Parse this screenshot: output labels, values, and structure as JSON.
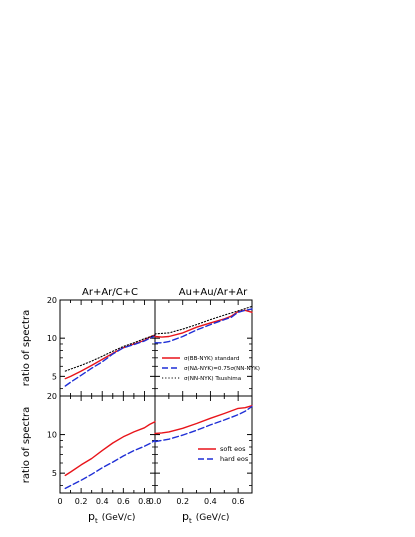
{
  "chart_data": {
    "type": "line",
    "ylabel": "ratio of spectra",
    "xlabel": "p",
    "xlabel_sub": "t",
    "xlabel_unit": "(GeV/c)",
    "colors": {
      "red": "#e8141a",
      "blue": "#1f2fd6",
      "black": "#000000",
      "axis": "#000000"
    },
    "columns": [
      {
        "title": "Ar+Ar/C+C",
        "xlim": [
          0,
          0.9
        ],
        "xticks": [
          "0",
          "0.2",
          "0.4",
          "0.6",
          "0.8"
        ]
      },
      {
        "title": "Au+Au/Ar+Ar",
        "xlim": [
          0,
          0.7
        ],
        "xticks": [
          "0.0",
          "0.2",
          "0.4",
          "0.6"
        ]
      }
    ],
    "rows": [
      {
        "ylim": [
          3.5,
          20
        ],
        "ytick_labels": {
          "5": "5",
          "10": "10",
          "20": "20"
        }
      },
      {
        "ylim": [
          3.5,
          20
        ],
        "ytick_labels": {
          "5": "5",
          "10": "10",
          "20": "20"
        }
      }
    ],
    "yscale": "log",
    "y_major_ticks": [
      5,
      10,
      20
    ],
    "y_minor_ticks": [
      4,
      6,
      7,
      8,
      9
    ],
    "panels": [
      {
        "row": 0,
        "col": 0,
        "series": [
          {
            "key": "std",
            "style": "solid",
            "color": "red",
            "x": [
              0.05,
              0.1,
              0.2,
              0.3,
              0.4,
              0.5,
              0.6,
              0.7,
              0.8,
              0.85,
              0.9
            ],
            "y": [
              4.8,
              5.0,
              5.5,
              6.1,
              6.8,
              7.6,
              8.4,
              9.0,
              9.6,
              10.2,
              10.6
            ]
          },
          {
            "key": "na",
            "style": "dashed",
            "color": "blue",
            "x": [
              0.05,
              0.1,
              0.2,
              0.3,
              0.4,
              0.5,
              0.6,
              0.7,
              0.8,
              0.85,
              0.9
            ],
            "y": [
              4.2,
              4.5,
              5.1,
              5.8,
              6.5,
              7.5,
              8.4,
              8.9,
              9.5,
              10.0,
              10.4
            ]
          },
          {
            "key": "nn",
            "style": "dotted",
            "color": "black",
            "x": [
              0.05,
              0.1,
              0.2,
              0.3,
              0.4,
              0.5,
              0.6,
              0.7,
              0.8,
              0.9
            ],
            "y": [
              5.5,
              5.7,
              6.1,
              6.6,
              7.2,
              7.9,
              8.6,
              9.2,
              9.9,
              10.6
            ]
          }
        ]
      },
      {
        "row": 0,
        "col": 1,
        "series": [
          {
            "key": "std",
            "style": "solid",
            "color": "red",
            "x": [
              0.0,
              0.05,
              0.1,
              0.2,
              0.3,
              0.4,
              0.5,
              0.55,
              0.6,
              0.65,
              0.7
            ],
            "y": [
              10.3,
              10.2,
              10.3,
              11.0,
              12.2,
              13.2,
              14.2,
              14.9,
              16.2,
              16.6,
              16.0
            ]
          },
          {
            "key": "na",
            "style": "dashed",
            "color": "blue",
            "x": [
              0.0,
              0.05,
              0.1,
              0.2,
              0.3,
              0.4,
              0.5,
              0.55,
              0.6,
              0.65,
              0.7
            ],
            "y": [
              9.2,
              9.2,
              9.4,
              10.3,
              11.6,
              12.8,
              14.0,
              14.6,
              16.0,
              16.6,
              17.0
            ]
          },
          {
            "key": "nn",
            "style": "dotted",
            "color": "black",
            "x": [
              0.0,
              0.05,
              0.1,
              0.2,
              0.3,
              0.4,
              0.5,
              0.6,
              0.7
            ],
            "y": [
              10.8,
              10.9,
              11.0,
              11.8,
              12.8,
              14.0,
              15.2,
              16.4,
              17.8
            ]
          }
        ]
      },
      {
        "row": 1,
        "col": 0,
        "series": [
          {
            "key": "soft",
            "style": "solid",
            "color": "red",
            "x": [
              0.05,
              0.1,
              0.2,
              0.3,
              0.4,
              0.5,
              0.6,
              0.7,
              0.8,
              0.85,
              0.9
            ],
            "y": [
              4.8,
              5.1,
              5.8,
              6.5,
              7.5,
              8.6,
              9.6,
              10.5,
              11.3,
              12.0,
              12.6
            ]
          },
          {
            "key": "hard",
            "style": "dashed",
            "color": "blue",
            "x": [
              0.05,
              0.1,
              0.2,
              0.3,
              0.4,
              0.5,
              0.6,
              0.7,
              0.8,
              0.85,
              0.9
            ],
            "y": [
              3.8,
              4.0,
              4.4,
              4.9,
              5.5,
              6.1,
              6.8,
              7.5,
              8.1,
              8.5,
              9.0
            ]
          }
        ]
      },
      {
        "row": 1,
        "col": 1,
        "series": [
          {
            "key": "soft",
            "style": "solid",
            "color": "red",
            "x": [
              0.0,
              0.05,
              0.1,
              0.2,
              0.3,
              0.4,
              0.5,
              0.6,
              0.65,
              0.7
            ],
            "y": [
              10.2,
              10.3,
              10.5,
              11.2,
              12.2,
              13.4,
              14.6,
              16.0,
              16.2,
              16.8
            ]
          },
          {
            "key": "hard",
            "style": "dashed",
            "color": "blue",
            "x": [
              0.0,
              0.05,
              0.1,
              0.2,
              0.3,
              0.4,
              0.5,
              0.6,
              0.65,
              0.7
            ],
            "y": [
              8.8,
              9.0,
              9.2,
              9.9,
              10.8,
              11.9,
              13.0,
              14.3,
              15.2,
              16.6
            ]
          }
        ]
      }
    ],
    "legends": [
      {
        "panel": 1,
        "placement": "center-right",
        "entries": [
          {
            "style": "solid",
            "color": "red",
            "label": "σ(BB-NYK) standard"
          },
          {
            "style": "dashed",
            "color": "blue",
            "label": "σ(NΔ-NYK)=0.75σ(NN-NYK)"
          },
          {
            "style": "dotted",
            "color": "black",
            "label": "σ(NN-NYK) Tsushima"
          }
        ]
      },
      {
        "panel": 3,
        "placement": "center-right",
        "entries": [
          {
            "style": "solid",
            "color": "red",
            "label": "soft eos"
          },
          {
            "style": "dashed",
            "color": "blue",
            "label": "hard eos"
          }
        ]
      }
    ]
  }
}
